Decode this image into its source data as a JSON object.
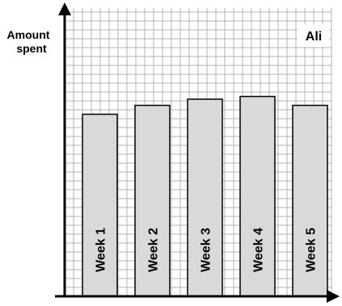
{
  "chart_data": {
    "type": "bar",
    "ylabel_lines": [
      "Amount",
      "spent"
    ],
    "xlabel": "",
    "categories": [
      "Week 1",
      "Week 2",
      "Week 3",
      "Week 4",
      "Week 5"
    ],
    "values": [
      20.5,
      21.5,
      22.2,
      22.5,
      21.5
    ],
    "ylim": [
      0,
      31
    ],
    "grid": true,
    "series_name": "Ali",
    "colors": {
      "bar": "#d9d9d9",
      "grid": "#b3b3b3",
      "axis": "#000000"
    }
  }
}
